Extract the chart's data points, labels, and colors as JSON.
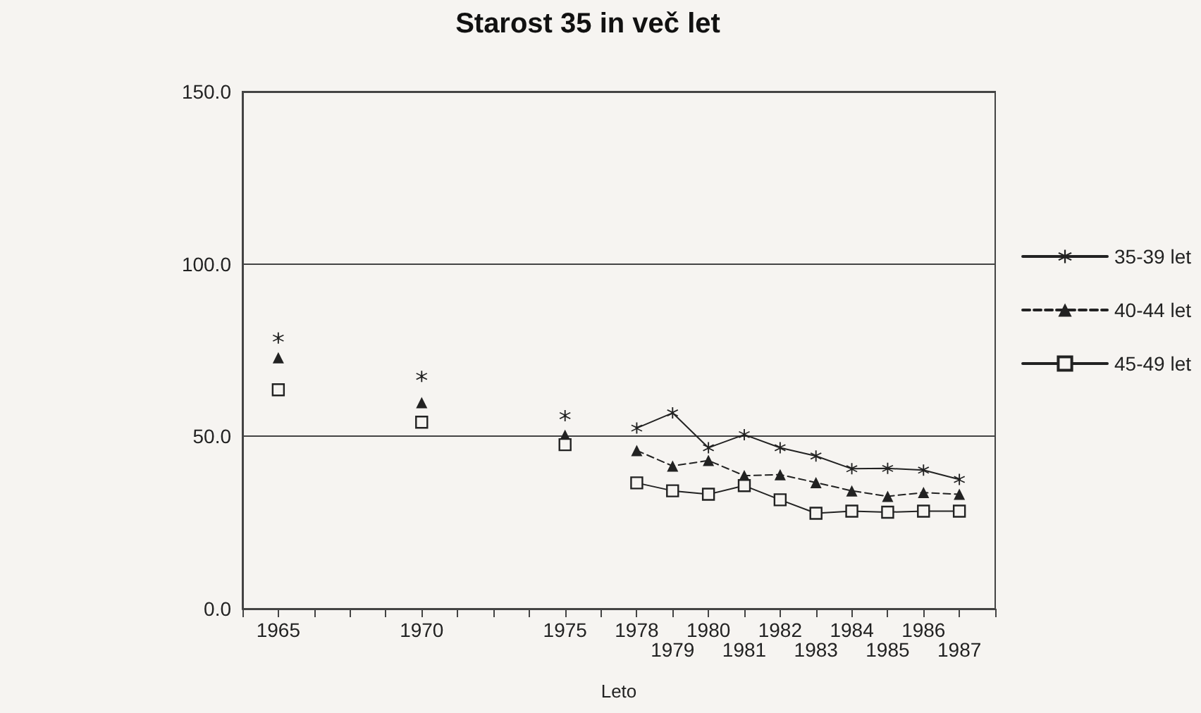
{
  "chart_data": {
    "type": "line",
    "title": "Starost 35 in več let",
    "xlabel": "Leto",
    "categories": [
      "1965",
      null,
      null,
      null,
      "1970",
      null,
      null,
      null,
      "1975",
      null,
      "1978",
      "1979",
      "1980",
      "1981",
      "1982",
      "1983",
      "1984",
      "1985",
      "1986",
      "1987"
    ],
    "series": [
      {
        "name": "35-39 let",
        "color": "#222222",
        "marker": "star",
        "line_style": "solid",
        "values": [
          78.5,
          null,
          null,
          null,
          67.4,
          null,
          null,
          null,
          56,
          null,
          52.4,
          56.8,
          46.7,
          50.5,
          46.7,
          44.3,
          40.6,
          40.7,
          40.2,
          37.5
        ]
      },
      {
        "name": "40-44 let",
        "color": "#222222",
        "marker": "triangle",
        "line_style": "dashed",
        "values": [
          72.8,
          null,
          null,
          null,
          59.8,
          null,
          null,
          null,
          50.3,
          null,
          45.9,
          41.4,
          43,
          38.6,
          38.9,
          36.6,
          34.2,
          32.6,
          33.7,
          33.2
        ]
      },
      {
        "name": "45-49 let",
        "color": "#222222",
        "marker": "square",
        "line_style": "solid",
        "values": [
          63.5,
          null,
          null,
          null,
          54.1,
          null,
          null,
          null,
          47.6,
          null,
          36.5,
          34.2,
          33.2,
          35.7,
          31.6,
          27.7,
          28.3,
          28,
          28.3,
          28.3
        ]
      }
    ],
    "ylim": [
      0,
      150
    ],
    "yticks": [
      {
        "value": 0,
        "label": "0.0"
      },
      {
        "value": 50,
        "label": "50.0"
      },
      {
        "value": 100,
        "label": "100.0"
      },
      {
        "value": 150,
        "label": "150.0"
      }
    ],
    "grid": "y",
    "legend": "right"
  }
}
